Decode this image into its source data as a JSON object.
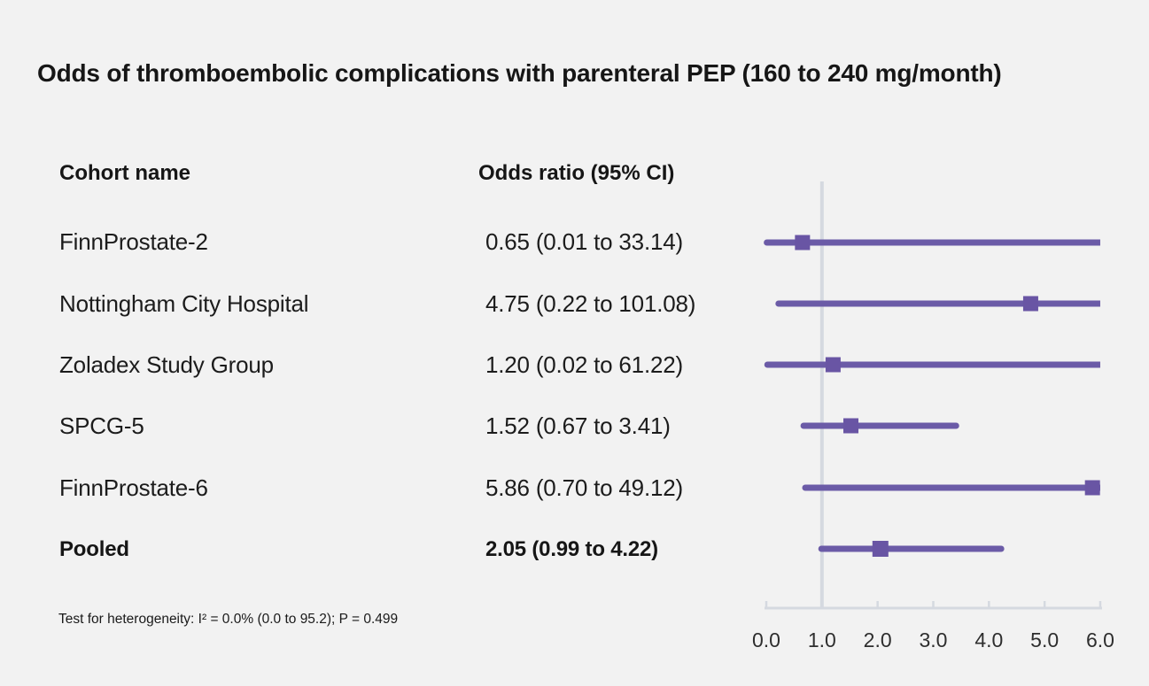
{
  "title": "Odds of thromboembolic complications with parenteral PEP (160 to 240 mg/month)",
  "table": {
    "cohort_header": "Cohort name",
    "or_header": "Odds ratio (95% CI)"
  },
  "rows": [
    {
      "name": "FinnProstate-2",
      "or_ci": "0.65 (0.01 to 33.14)"
    },
    {
      "name": "Nottingham City Hospital",
      "or_ci": "4.75 (0.22 to 101.08)"
    },
    {
      "name": "Zoladex Study Group",
      "or_ci": "1.20 (0.02 to 61.22)"
    },
    {
      "name": "SPCG-5",
      "or_ci": "1.52 (0.67 to 3.41)"
    },
    {
      "name": "FinnProstate-6",
      "or_ci": "5.86 (0.70 to 49.12)"
    },
    {
      "name": "Pooled",
      "or_ci": "2.05 (0.99 to 4.22)"
    }
  ],
  "footnote": "Test for heterogeneity: I² = 0.0% (0.0 to 95.2); P = 0.499",
  "chart_data": {
    "type": "scatter",
    "subtype": "forest-plot",
    "title": "Odds of thromboembolic complications with parenteral PEP (160 to 240 mg/month)",
    "points": [
      {
        "label": "FinnProstate-2",
        "estimate": 0.65,
        "ci_low": 0.01,
        "ci_high": 33.14,
        "pooled": false
      },
      {
        "label": "Nottingham City Hospital",
        "estimate": 4.75,
        "ci_low": 0.22,
        "ci_high": 101.08,
        "pooled": false
      },
      {
        "label": "Zoladex Study Group",
        "estimate": 1.2,
        "ci_low": 0.02,
        "ci_high": 61.22,
        "pooled": false
      },
      {
        "label": "SPCG-5",
        "estimate": 1.52,
        "ci_low": 0.67,
        "ci_high": 3.41,
        "pooled": false
      },
      {
        "label": "FinnProstate-6",
        "estimate": 5.86,
        "ci_low": 0.7,
        "ci_high": 49.12,
        "pooled": false
      },
      {
        "label": "Pooled",
        "estimate": 2.05,
        "ci_low": 0.99,
        "ci_high": 4.22,
        "pooled": true
      }
    ],
    "xlim": [
      0,
      6
    ],
    "x_ticks": [
      0,
      1,
      2,
      3,
      4,
      5,
      6
    ],
    "x_tick_labels": [
      "0.0",
      "1.0",
      "2.0",
      "3.0",
      "4.0",
      "5.0",
      "6.0"
    ],
    "reference_line_x": 1.0,
    "marker": "square",
    "grid": false,
    "legend": "none",
    "colors": {
      "ci_line": "#6b5ba7",
      "marker": "#6955a4",
      "axis": "#d5d9e0",
      "background": "#f2f2f2",
      "text": "#1c1c1c"
    }
  }
}
